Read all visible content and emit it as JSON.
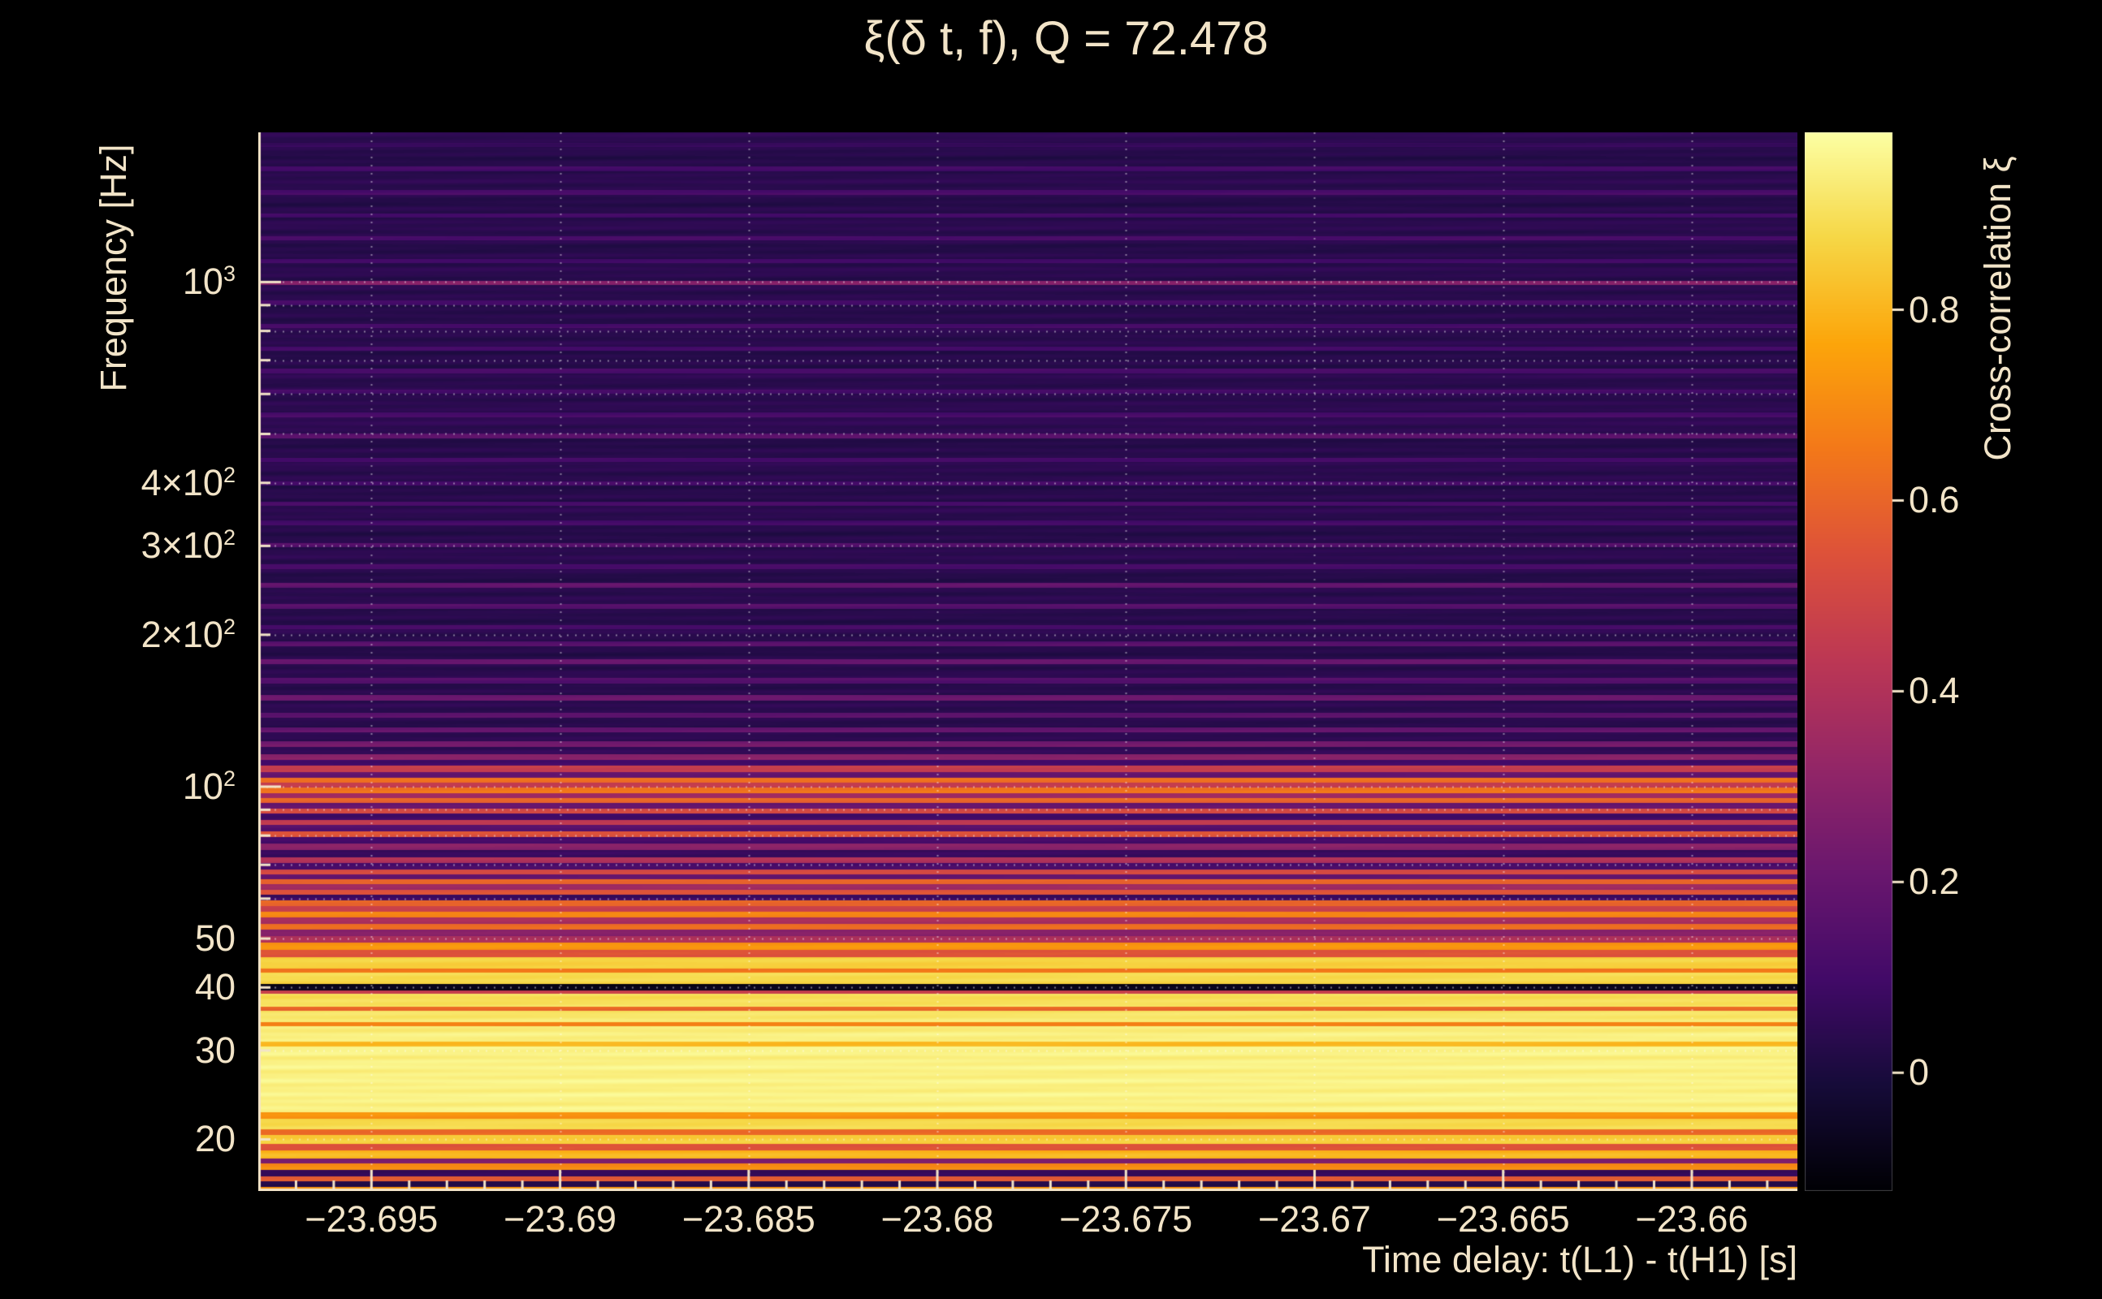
{
  "style": {
    "background": "#000000",
    "text_color": "#f2e4c8",
    "axis_color": "#f2e4c8",
    "grid_color": "rgba(255,255,255,0.45)"
  },
  "axes": {
    "x": {
      "min": -23.698,
      "max": -23.6572,
      "minor_step": 0.001,
      "ticks": [
        {
          "v": -23.695,
          "label": "−23.695"
        },
        {
          "v": -23.69,
          "label": "−23.69"
        },
        {
          "v": -23.685,
          "label": "−23.685"
        },
        {
          "v": -23.68,
          "label": "−23.68"
        },
        {
          "v": -23.675,
          "label": "−23.675"
        },
        {
          "v": -23.67,
          "label": "−23.67"
        },
        {
          "v": -23.665,
          "label": "−23.665"
        },
        {
          "v": -23.66,
          "label": "−23.66"
        }
      ]
    },
    "y": {
      "scale": "log",
      "min": 15.8,
      "max": 1980,
      "ticks": [
        {
          "v": 1000,
          "base": "10",
          "exp": "3"
        },
        {
          "v": 400,
          "base": "4×10",
          "exp": "2"
        },
        {
          "v": 300,
          "base": "3×10",
          "exp": "2"
        },
        {
          "v": 200,
          "base": "2×10",
          "exp": "2"
        },
        {
          "v": 100,
          "base": "10",
          "exp": "2"
        },
        {
          "v": 50,
          "base": "50",
          "exp": ""
        },
        {
          "v": 40,
          "base": "40",
          "exp": ""
        },
        {
          "v": 30,
          "base": "30",
          "exp": ""
        },
        {
          "v": 20,
          "base": "20",
          "exp": ""
        }
      ]
    },
    "colorbar": {
      "min": -0.124,
      "max": 0.986,
      "ticks": [
        {
          "v": 0,
          "label": "0"
        },
        {
          "v": 0.2,
          "label": "0.2"
        },
        {
          "v": 0.4,
          "label": "0.4"
        },
        {
          "v": 0.6,
          "label": "0.6"
        },
        {
          "v": 0.8,
          "label": "0.8"
        }
      ]
    }
  },
  "chart_data": {
    "type": "heatmap",
    "title": "ξ(δ t, f), Q = 72.478",
    "xlabel": "Time delay: t(L1) - t(H1) [s]",
    "ylabel": "Frequency [Hz]",
    "zlabel": "Cross-correlation ξ",
    "x_range": [
      -23.698,
      -23.6572
    ],
    "y_range": [
      15.8,
      1980
    ],
    "y_scale": "log",
    "z_range": [
      -0.124,
      0.986
    ],
    "note": "Cross-correlation value is essentially constant in time delay; it varies with frequency as horizontal bands.",
    "colormap": {
      "name": "inferno",
      "stops": [
        [
          0.0,
          [
            0,
            0,
            4
          ]
        ],
        [
          0.1,
          [
            22,
            11,
            57
          ]
        ],
        [
          0.2,
          [
            66,
            10,
            104
          ]
        ],
        [
          0.3,
          [
            106,
            23,
            110
          ]
        ],
        [
          0.4,
          [
            147,
            38,
            103
          ]
        ],
        [
          0.5,
          [
            188,
            55,
            84
          ]
        ],
        [
          0.6,
          [
            221,
            81,
            58
          ]
        ],
        [
          0.7,
          [
            243,
            120,
            25
          ]
        ],
        [
          0.8,
          [
            252,
            165,
            10
          ]
        ],
        [
          0.9,
          [
            246,
            215,
            70
          ]
        ],
        [
          1.0,
          [
            252,
            255,
            164
          ]
        ]
      ]
    },
    "frequency_profile": [
      [
        15.8,
        16.1,
        0.72
      ],
      [
        16.1,
        16.5,
        0.02
      ],
      [
        16.5,
        16.9,
        0.58
      ],
      [
        16.9,
        17.4,
        0.06
      ],
      [
        17.4,
        17.9,
        0.7
      ],
      [
        17.9,
        18.3,
        0.26
      ],
      [
        18.3,
        19.0,
        0.8
      ],
      [
        19.0,
        19.6,
        0.55
      ],
      [
        19.6,
        20.4,
        0.85
      ],
      [
        20.4,
        20.9,
        0.62
      ],
      [
        20.9,
        22.0,
        0.88
      ],
      [
        22.0,
        22.6,
        0.72
      ],
      [
        22.6,
        30.5,
        0.95
      ],
      [
        30.5,
        31.2,
        0.82
      ],
      [
        31.2,
        33.5,
        0.94
      ],
      [
        33.5,
        34.2,
        0.68
      ],
      [
        34.2,
        36.0,
        0.92
      ],
      [
        36.0,
        36.7,
        0.6
      ],
      [
        36.7,
        38.8,
        0.9
      ],
      [
        38.8,
        39.5,
        0.46
      ],
      [
        39.5,
        40.6,
        -0.08
      ],
      [
        40.6,
        42.8,
        0.88
      ],
      [
        42.8,
        43.6,
        0.66
      ],
      [
        43.6,
        46.0,
        0.86
      ],
      [
        46.0,
        47.5,
        0.55
      ],
      [
        47.5,
        49.0,
        0.72
      ],
      [
        49.0,
        50.5,
        0.4
      ],
      [
        50.5,
        52.0,
        0.28
      ],
      [
        52.0,
        53.5,
        0.62
      ],
      [
        53.5,
        55.0,
        0.38
      ],
      [
        55.0,
        56.5,
        0.68
      ],
      [
        56.5,
        58.0,
        0.48
      ],
      [
        58.0,
        59.5,
        0.6
      ],
      [
        59.5,
        61.0,
        0.08
      ],
      [
        61.0,
        62.5,
        0.55
      ],
      [
        62.5,
        64.0,
        0.34
      ],
      [
        64.0,
        65.5,
        0.6
      ],
      [
        65.5,
        67.0,
        0.2
      ],
      [
        67.0,
        68.5,
        0.5
      ],
      [
        68.5,
        70.5,
        0.12
      ],
      [
        70.5,
        72.5,
        0.4
      ],
      [
        72.5,
        75.0,
        0.07
      ],
      [
        75.0,
        77.0,
        0.3
      ],
      [
        77.0,
        79.5,
        0.1
      ],
      [
        79.5,
        81.5,
        0.55
      ],
      [
        81.5,
        84.0,
        0.15
      ],
      [
        84.0,
        86.0,
        0.45
      ],
      [
        86.0,
        88.5,
        0.1
      ],
      [
        88.5,
        90.5,
        0.5
      ],
      [
        90.5,
        93.0,
        0.2
      ],
      [
        93.0,
        95.0,
        0.6
      ],
      [
        95.0,
        97.0,
        0.35
      ],
      [
        97.0,
        99.5,
        0.65
      ],
      [
        99.5,
        102,
        0.45
      ],
      [
        102,
        104,
        0.62
      ],
      [
        104,
        107,
        0.2
      ],
      [
        107,
        110,
        0.46
      ],
      [
        110,
        113,
        0.1
      ],
      [
        113,
        116,
        0.3
      ],
      [
        116,
        120,
        0.05
      ],
      [
        120,
        123,
        0.24
      ],
      [
        123,
        128,
        0.04
      ],
      [
        128,
        131,
        0.2
      ],
      [
        131,
        137,
        0.03
      ],
      [
        137,
        140,
        0.18
      ],
      [
        140,
        148,
        0.04
      ],
      [
        148,
        152,
        0.22
      ],
      [
        152,
        160,
        0.03
      ],
      [
        160,
        164,
        0.15
      ],
      [
        164,
        175,
        0.04
      ],
      [
        175,
        179,
        0.2
      ],
      [
        179,
        190,
        0.03
      ],
      [
        190,
        194,
        0.15
      ],
      [
        194,
        205,
        0.04
      ],
      [
        205,
        209,
        0.12
      ],
      [
        209,
        225,
        0.03
      ],
      [
        225,
        230,
        0.16
      ],
      [
        230,
        248,
        0.04
      ],
      [
        248,
        253,
        0.18
      ],
      [
        253,
        270,
        0.03
      ],
      [
        270,
        276,
        0.12
      ],
      [
        276,
        298,
        0.04
      ],
      [
        298,
        304,
        0.15
      ],
      [
        304,
        330,
        0.03
      ],
      [
        330,
        337,
        0.1
      ],
      [
        337,
        360,
        0.04
      ],
      [
        360,
        367,
        0.12
      ],
      [
        367,
        395,
        0.03
      ],
      [
        395,
        403,
        0.1
      ],
      [
        403,
        440,
        0.04
      ],
      [
        440,
        449,
        0.12
      ],
      [
        449,
        490,
        0.03
      ],
      [
        490,
        500,
        0.16
      ],
      [
        500,
        540,
        0.05
      ],
      [
        540,
        551,
        0.12
      ],
      [
        551,
        600,
        0.04
      ],
      [
        600,
        612,
        0.1
      ],
      [
        612,
        660,
        0.04
      ],
      [
        660,
        673,
        0.12
      ],
      [
        673,
        730,
        0.03
      ],
      [
        730,
        745,
        0.1
      ],
      [
        745,
        810,
        0.04
      ],
      [
        810,
        826,
        0.12
      ],
      [
        826,
        900,
        0.03
      ],
      [
        900,
        918,
        0.1
      ],
      [
        918,
        985,
        0.04
      ],
      [
        985,
        1005,
        0.28
      ],
      [
        1005,
        1090,
        0.04
      ],
      [
        1090,
        1112,
        0.1
      ],
      [
        1112,
        1210,
        0.03
      ],
      [
        1210,
        1234,
        0.12
      ],
      [
        1234,
        1340,
        0.04
      ],
      [
        1340,
        1367,
        0.1
      ],
      [
        1367,
        1490,
        0.03
      ],
      [
        1490,
        1520,
        0.12
      ],
      [
        1520,
        1660,
        0.04
      ],
      [
        1660,
        1693,
        0.1
      ],
      [
        1693,
        1850,
        0.03
      ],
      [
        1850,
        1887,
        0.08
      ],
      [
        1887,
        1980,
        0.04
      ]
    ]
  }
}
